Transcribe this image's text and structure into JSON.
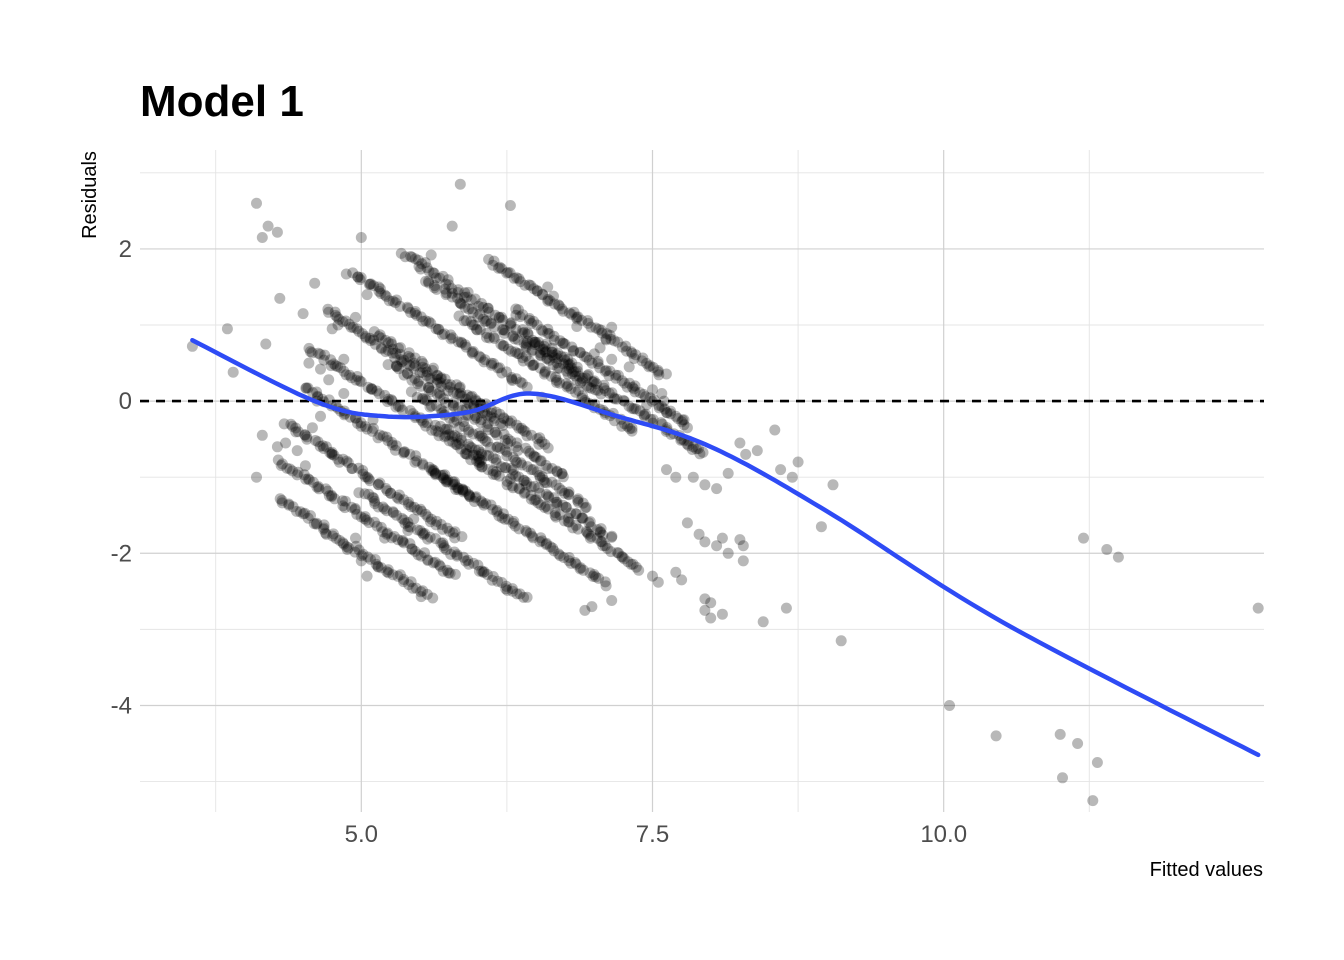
{
  "chart_data": {
    "type": "scatter",
    "title": "Model 1",
    "xlabel": "Fitted values",
    "ylabel": "Residuals",
    "xlim": [
      3.1,
      12.75
    ],
    "ylim": [
      -5.4,
      3.3
    ],
    "x_ticks": [
      5.0,
      7.5,
      10.0
    ],
    "x_tick_labels": [
      "5.0",
      "7.5",
      "10.0"
    ],
    "x_minor_ticks": [
      3.75,
      6.25,
      8.75,
      11.25
    ],
    "y_ticks": [
      -4,
      -2,
      0,
      2
    ],
    "y_tick_labels": [
      "-4",
      "-2",
      "0",
      "2"
    ],
    "y_minor_ticks": [
      -5,
      -3,
      -1,
      1,
      3
    ],
    "grid": true,
    "reference_line": {
      "y": 0,
      "style": "dashed",
      "color": "#000000"
    },
    "point_color": "#000000",
    "point_opacity": 0.28,
    "smooth_color": "#2e4bf5",
    "points": [
      [
        3.55,
        0.72
      ],
      [
        3.85,
        0.95
      ],
      [
        3.9,
        0.38
      ],
      [
        4.1,
        2.6
      ],
      [
        4.15,
        2.15
      ],
      [
        4.2,
        2.3
      ],
      [
        4.28,
        2.22
      ],
      [
        4.1,
        -1.0
      ],
      [
        4.15,
        -0.45
      ],
      [
        4.3,
        1.35
      ],
      [
        4.18,
        0.75
      ],
      [
        4.6,
        1.55
      ],
      [
        4.55,
        0.5
      ],
      [
        4.65,
        0.42
      ],
      [
        4.75,
        0.95
      ],
      [
        4.8,
        1.0
      ],
      [
        4.85,
        0.55
      ],
      [
        4.95,
        1.1
      ],
      [
        5.05,
        1.4
      ],
      [
        5.15,
        1.5
      ],
      [
        5.0,
        2.15
      ],
      [
        4.5,
        1.15
      ],
      [
        4.58,
        -0.35
      ],
      [
        4.52,
        -0.85
      ],
      [
        4.35,
        -0.55
      ],
      [
        4.28,
        -0.6
      ],
      [
        4.45,
        -0.65
      ],
      [
        4.7,
        -0.6
      ],
      [
        4.75,
        -0.7
      ],
      [
        4.62,
        0.0
      ],
      [
        4.72,
        0.28
      ],
      [
        4.85,
        0.1
      ],
      [
        4.65,
        -0.2
      ],
      [
        5.1,
        -0.25
      ],
      [
        5.85,
        2.85
      ],
      [
        6.28,
        2.57
      ],
      [
        5.78,
        2.3
      ],
      [
        5.6,
        1.92
      ],
      [
        5.55,
        1.82
      ],
      [
        6.6,
        1.5
      ],
      [
        6.65,
        1.38
      ],
      [
        6.85,
        1.08
      ],
      [
        6.85,
        0.98
      ],
      [
        7.15,
        0.97
      ],
      [
        7.1,
        0.82
      ],
      [
        7.05,
        0.7
      ],
      [
        7.15,
        0.55
      ],
      [
        7.3,
        0.45
      ],
      [
        7.0,
        0.62
      ],
      [
        6.9,
        0.3
      ],
      [
        6.55,
        0.05
      ],
      [
        6.95,
        0.35
      ],
      [
        7.5,
        0.15
      ],
      [
        7.35,
        0.2
      ],
      [
        7.6,
        0.0
      ],
      [
        7.58,
        0.1
      ],
      [
        7.45,
        -0.05
      ],
      [
        7.62,
        -0.15
      ],
      [
        7.7,
        -0.2
      ],
      [
        7.8,
        -0.35
      ],
      [
        7.75,
        -0.5
      ],
      [
        7.85,
        -0.6
      ],
      [
        7.62,
        -0.9
      ],
      [
        7.7,
        -1.0
      ],
      [
        7.85,
        -1.0
      ],
      [
        7.95,
        -1.1
      ],
      [
        8.05,
        -1.15
      ],
      [
        8.15,
        -0.95
      ],
      [
        8.25,
        -0.55
      ],
      [
        8.3,
        -0.7
      ],
      [
        8.4,
        -0.65
      ],
      [
        8.55,
        -0.38
      ],
      [
        8.6,
        -0.9
      ],
      [
        8.7,
        -1.0
      ],
      [
        8.75,
        -0.8
      ],
      [
        9.05,
        -1.1
      ],
      [
        8.95,
        -1.65
      ],
      [
        9.12,
        -3.15
      ],
      [
        7.8,
        -1.6
      ],
      [
        7.9,
        -1.75
      ],
      [
        7.95,
        -1.85
      ],
      [
        8.05,
        -1.9
      ],
      [
        8.1,
        -1.8
      ],
      [
        8.15,
        -2.0
      ],
      [
        7.95,
        -2.6
      ],
      [
        7.95,
        -2.75
      ],
      [
        8.0,
        -2.65
      ],
      [
        8.0,
        -2.85
      ],
      [
        8.1,
        -2.8
      ],
      [
        8.45,
        -2.9
      ],
      [
        8.65,
        -2.72
      ],
      [
        8.25,
        -1.82
      ],
      [
        8.28,
        -1.9
      ],
      [
        8.28,
        -2.1
      ],
      [
        7.7,
        -2.25
      ],
      [
        7.5,
        -2.3
      ],
      [
        7.75,
        -2.35
      ],
      [
        7.55,
        -2.38
      ],
      [
        7.15,
        -2.62
      ],
      [
        6.98,
        -2.7
      ],
      [
        6.92,
        -2.75
      ],
      [
        5.05,
        -2.3
      ],
      [
        5.0,
        -2.1
      ],
      [
        4.88,
        -1.95
      ],
      [
        4.95,
        -1.8
      ],
      [
        4.7,
        -1.75
      ],
      [
        5.2,
        -1.8
      ],
      [
        5.4,
        -1.7
      ],
      [
        5.45,
        -1.55
      ],
      [
        10.05,
        -4.0
      ],
      [
        10.45,
        -4.4
      ],
      [
        11.2,
        -1.8
      ],
      [
        11.4,
        -1.95
      ],
      [
        11.5,
        -2.05
      ],
      [
        11.0,
        -4.38
      ],
      [
        11.02,
        -4.95
      ],
      [
        11.15,
        -4.5
      ],
      [
        11.32,
        -4.75
      ],
      [
        11.28,
        -5.25
      ],
      [
        12.7,
        -2.72
      ]
    ]
  }
}
